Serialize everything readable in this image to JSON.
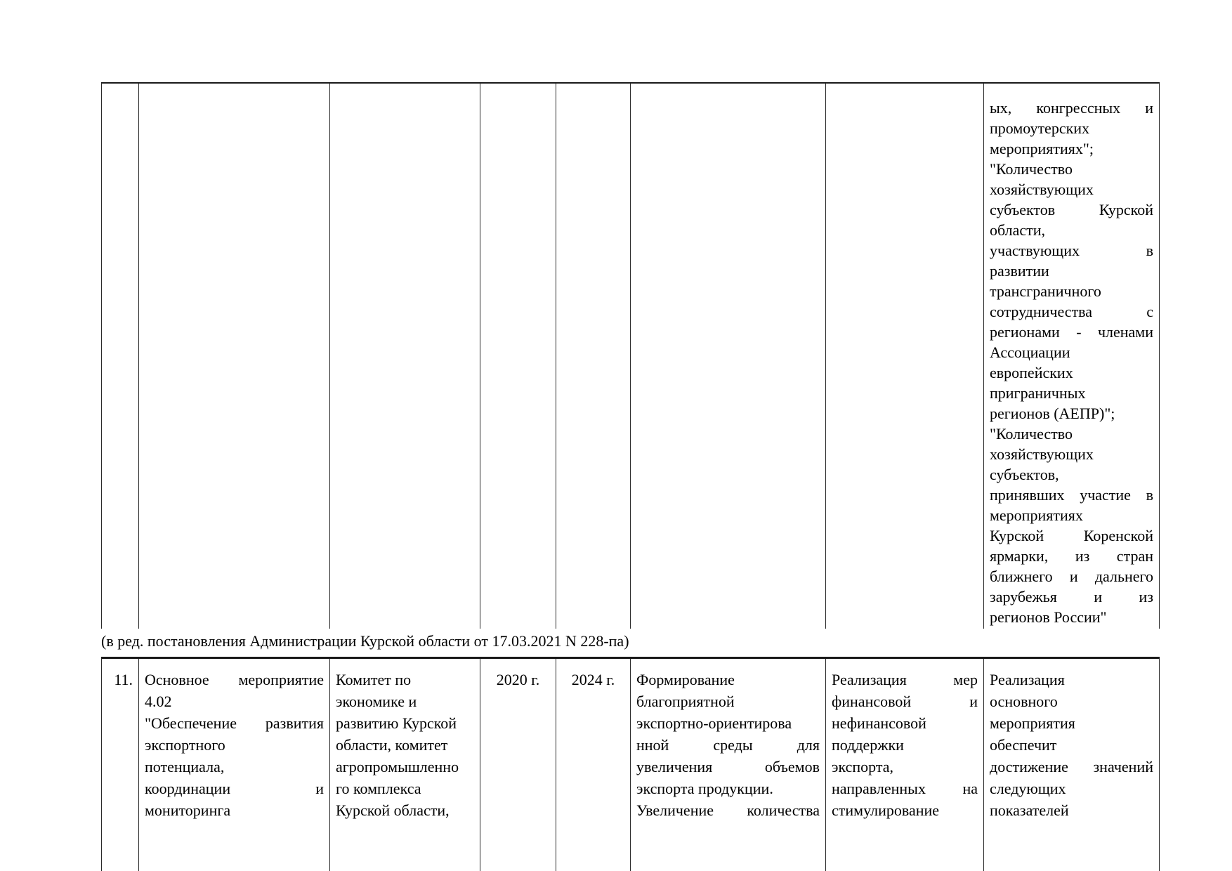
{
  "continuation": {
    "indicator_lines": [
      "ых, конгрессных и",
      "промоутерских",
      "мероприятиях\";",
      "\"Количество",
      "хозяйствующих",
      "субъектов Курской",
      "области,",
      "участвующих в",
      "развитии",
      "трансграничного",
      "сотрудничества с",
      "регионами - членами",
      "Ассоциации",
      "европейских",
      "приграничных",
      {
        "t": "регионов (АЕПР)\";",
        "r": true
      },
      "\"Количество",
      "хозяйствующих",
      "субъектов,",
      "принявших участие в",
      "мероприятиях",
      "Курской Коренской",
      "ярмарки, из стран",
      "ближнего и дальнего",
      "зарубежья и из",
      {
        "t": "регионов России\"",
        "r": true
      }
    ]
  },
  "amendment": {
    "text": "(в ред. постановления Администрации Курской области от 17.03.2021 N 228-па)"
  },
  "row11": {
    "number": "11.",
    "name_lines": [
      "Основное мероприятие",
      "4.02",
      "\"Обеспечение развития",
      "экспортного",
      "потенциала,",
      "координации и",
      "мониторинга"
    ],
    "executor_lines": [
      "Комитет по",
      "экономике и",
      "развитию Курской",
      "области, комитет",
      "агропромышленно",
      "го комплекса",
      "Курской области,"
    ],
    "start": "2020 г.",
    "end": "2024 г.",
    "result_lines": [
      "Формирование",
      "благоприятной",
      "экспортно-ориентирова",
      "нной среды для",
      "увеличения объемов",
      {
        "t": "экспорта продукции.",
        "r": true
      },
      "Увеличение количества"
    ],
    "measures_lines": [
      "Реализация мер",
      "финансовой и",
      "нефинансовой",
      "поддержки",
      "экспорта,",
      "направленных на",
      "стимулирование"
    ],
    "indicator_lines": [
      "Реализация",
      "основного",
      "мероприятия",
      "обеспечит",
      "достижение значений",
      "следующих",
      "показателей"
    ]
  }
}
